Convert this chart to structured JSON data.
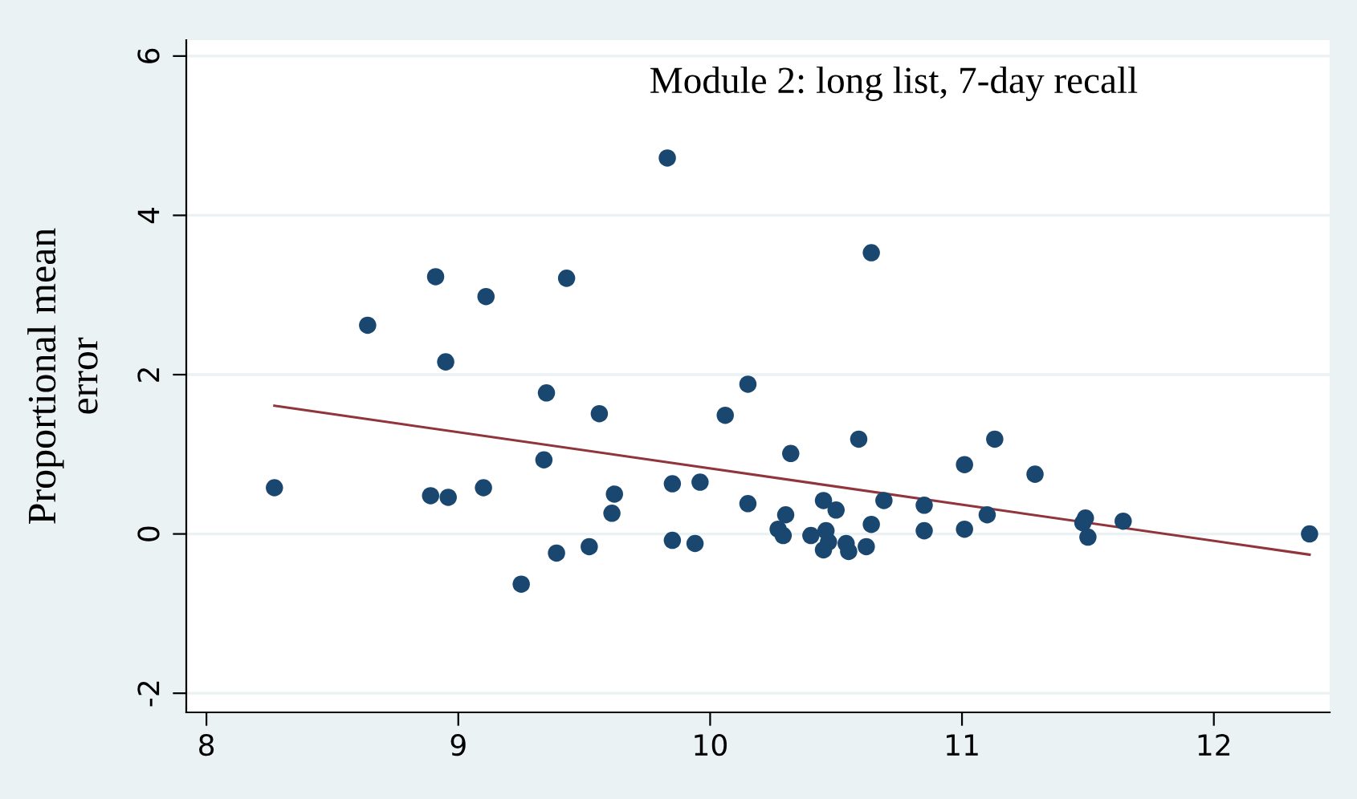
{
  "chart_data": {
    "type": "scatter",
    "ylabel": "Proportional mean error",
    "annotations": [
      "Module 2: long list, 7-day recall"
    ],
    "xlim": [
      7.92,
      12.46
    ],
    "ylim": [
      -2.24,
      6.2
    ],
    "xticks": [
      8,
      9,
      10,
      11,
      12
    ],
    "yticks": [
      -2,
      0,
      2,
      4,
      6
    ],
    "grid": "y",
    "legend": false,
    "series": [
      {
        "marker": "circle",
        "color": "#1a476f",
        "x": [
          8.27,
          8.64,
          8.91,
          9.11,
          9.43,
          8.95,
          9.35,
          9.34,
          8.89,
          8.96,
          9.1,
          9.25,
          9.39,
          9.52,
          9.83,
          10.64,
          9.56,
          10.15,
          10.06,
          10.59,
          10.32,
          9.62,
          9.61,
          9.85,
          9.96,
          10.15,
          10.3,
          10.45,
          10.5,
          10.69,
          10.85,
          11.01,
          10.64,
          10.27,
          10.29,
          10.4,
          10.46,
          10.47,
          10.45,
          10.54,
          10.55,
          10.62,
          10.85,
          11.01,
          9.85,
          9.94,
          11.1,
          11.13,
          11.29,
          11.48,
          11.49,
          11.5,
          11.64,
          12.38
        ],
        "values": [
          0.58,
          2.62,
          3.23,
          2.98,
          3.21,
          2.16,
          1.77,
          0.93,
          0.48,
          0.46,
          0.58,
          -0.63,
          -0.24,
          -0.16,
          4.72,
          3.53,
          1.51,
          1.88,
          1.49,
          1.19,
          1.01,
          0.5,
          0.26,
          0.63,
          0.65,
          0.38,
          0.24,
          0.42,
          0.3,
          0.42,
          0.36,
          0.87,
          0.12,
          0.06,
          -0.02,
          -0.02,
          0.04,
          -0.1,
          -0.2,
          -0.12,
          -0.22,
          -0.16,
          0.04,
          0.06,
          -0.08,
          -0.12,
          0.24,
          1.19,
          0.75,
          0.14,
          0.2,
          -0.04,
          0.16,
          0.0
        ]
      },
      {
        "type": "line",
        "color": "#90353b",
        "x": [
          8.27,
          12.38
        ],
        "values": [
          1.61,
          -0.26
        ]
      }
    ]
  }
}
